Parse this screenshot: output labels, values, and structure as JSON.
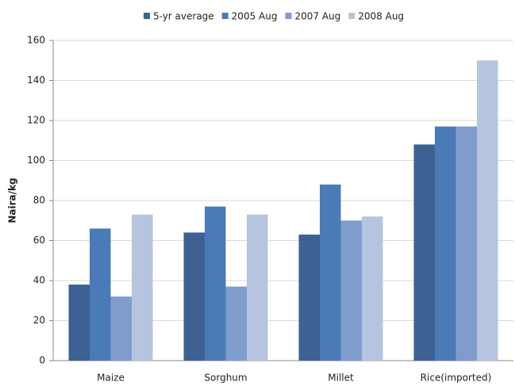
{
  "chart_data": {
    "type": "bar",
    "y_label": "Naira/kg",
    "categories": [
      "Maize",
      "Sorghum",
      "Millet",
      "Rice(imported)"
    ],
    "series": [
      {
        "name": "5-yr average",
        "color": "#3d6192",
        "values": [
          38,
          64,
          63,
          108
        ]
      },
      {
        "name": "2005 Aug",
        "color": "#4a7bb7",
        "values": [
          66,
          77,
          88,
          117
        ]
      },
      {
        "name": "2007 Aug",
        "color": "#7f9ccc",
        "values": [
          32,
          37,
          70,
          117
        ]
      },
      {
        "name": "2008 Aug",
        "color": "#b5c5df",
        "values": [
          73,
          73,
          72,
          150
        ]
      }
    ],
    "ylim": [
      0,
      160
    ],
    "yticks": [
      0,
      20,
      40,
      60,
      80,
      100,
      120,
      140,
      160
    ],
    "grid": true,
    "legend": "top"
  }
}
